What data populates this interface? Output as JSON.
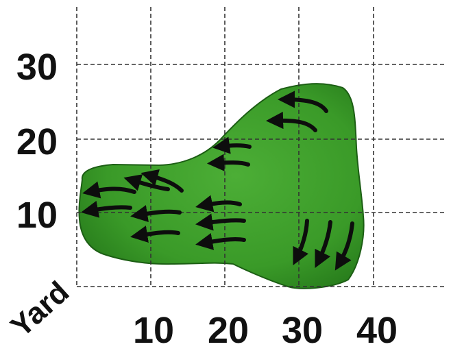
{
  "diagram": {
    "corner_label": "Yard",
    "x_ticks": [
      "10",
      "20",
      "30",
      "40"
    ],
    "y_ticks": [
      "30",
      "20",
      "10"
    ],
    "green_color": "#3a9a28",
    "green_dark": "#1f6e16",
    "arrow_color": "#0d0d0d",
    "arrow_icon": "curved-slope-arrow-icon",
    "arrow_count": 18
  }
}
